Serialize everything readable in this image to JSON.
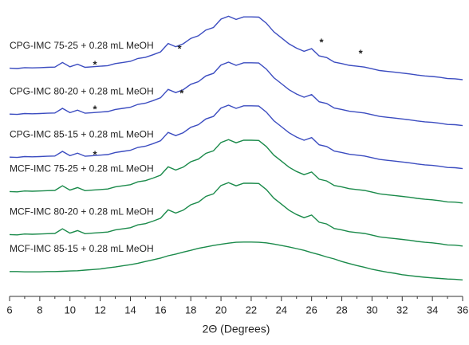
{
  "chart_data": {
    "type": "line",
    "x_label": "2Θ (Degrees)",
    "x": [
      6,
      6.5,
      7,
      7.5,
      8,
      8.5,
      9,
      9.5,
      10,
      10.5,
      11,
      11.5,
      12,
      12.5,
      13,
      13.5,
      14,
      14.5,
      15,
      15.5,
      16,
      16.5,
      17,
      17.5,
      18,
      18.5,
      19,
      19.5,
      20,
      20.5,
      21,
      21.5,
      22,
      22.5,
      23,
      23.5,
      24,
      24.5,
      25,
      25.5,
      26,
      26.5,
      27,
      27.5,
      28,
      28.5,
      29,
      29.5,
      30,
      30.5,
      31,
      31.5,
      32,
      32.5,
      33,
      33.5,
      34,
      34.5,
      35,
      35.5,
      36
    ],
    "xlim": [
      6,
      36
    ],
    "xticks": [
      6,
      8,
      10,
      12,
      14,
      16,
      18,
      20,
      22,
      24,
      26,
      28,
      30,
      32,
      34,
      36
    ],
    "ylim": [
      0,
      100
    ],
    "series": [
      {
        "name": "CPG-IMC 75-25 + 0.28 mL MeOH",
        "color": "#3b4cc0",
        "values": [
          79,
          78.9,
          79.2,
          79.1,
          79.2,
          79.3,
          79.4,
          81,
          79.5,
          80.4,
          79.3,
          79.5,
          79.7,
          79.9,
          80.6,
          81,
          81.4,
          82.4,
          82.8,
          83.7,
          84.7,
          87.6,
          86.5,
          87.5,
          89.4,
          90.3,
          92.3,
          93.2,
          96.1,
          97.1,
          96,
          96.9,
          96.9,
          96.8,
          94.7,
          91.7,
          89.6,
          87.5,
          86,
          84.9,
          85.8,
          83.3,
          82.7,
          81.1,
          80.6,
          80,
          79.7,
          79.4,
          78.8,
          78.2,
          77.9,
          77.6,
          77.3,
          77,
          76.6,
          76.3,
          76.1,
          75.8,
          75.4,
          75.3,
          75
        ]
      },
      {
        "name": "CPG-IMC 80-20 + 0.28 mL MeOH",
        "color": "#3b4cc0",
        "values": [
          63,
          62.9,
          63.2,
          63.1,
          63.2,
          63.3,
          63.4,
          65,
          63.5,
          64.4,
          63.3,
          63.5,
          63.7,
          63.9,
          64.6,
          65,
          65.4,
          66.4,
          66.8,
          67.7,
          68.7,
          71.6,
          70.5,
          71.5,
          73.4,
          74.3,
          76.3,
          77.2,
          80.1,
          81.1,
          80,
          80.9,
          80.9,
          80.8,
          78.7,
          75.7,
          73.6,
          71.5,
          70,
          68.9,
          69.8,
          67.3,
          66.7,
          65.1,
          64.6,
          64,
          63.7,
          63.4,
          62.8,
          62.2,
          61.9,
          61.6,
          61.3,
          61,
          60.6,
          60.3,
          60.1,
          59.8,
          59.4,
          59.3,
          59
        ]
      },
      {
        "name": "CPG-IMC 85-15 + 0.28 mL MeOH",
        "color": "#3b4cc0",
        "values": [
          48,
          47.9,
          48.2,
          48.1,
          48.2,
          48.3,
          48.4,
          50,
          48.5,
          49.4,
          48.3,
          48.5,
          48.7,
          48.9,
          49.6,
          50,
          50.4,
          51.4,
          51.8,
          52.7,
          53.7,
          56.6,
          55.5,
          56.5,
          58.4,
          59.3,
          61.3,
          62.2,
          65.1,
          66.1,
          65,
          65.9,
          65.9,
          65.8,
          63.7,
          60.7,
          58.6,
          56.5,
          55,
          53.9,
          54.8,
          52.3,
          51.7,
          50.1,
          49.6,
          49,
          48.7,
          48.4,
          47.8,
          47.2,
          46.9,
          46.6,
          46.3,
          46,
          45.6,
          45.3,
          45.1,
          44.8,
          44.4,
          44.3,
          44
        ]
      },
      {
        "name": "MCF-IMC 75-25 + 0.28 mL MeOH",
        "color": "#1a8a4a",
        "values": [
          36,
          35.9,
          36.2,
          36.1,
          36.2,
          36.3,
          36.4,
          38,
          36.5,
          37.4,
          36.3,
          36.5,
          36.7,
          36.9,
          37.6,
          38,
          38.4,
          39.4,
          39.8,
          40.7,
          41.7,
          44.6,
          43.5,
          44.5,
          46.4,
          47.3,
          49.3,
          50.2,
          53.1,
          54.1,
          53,
          53.9,
          53.9,
          53.8,
          51.7,
          48.7,
          46.6,
          44.5,
          43,
          41.9,
          42.8,
          40.3,
          39.7,
          38.1,
          37.6,
          37,
          36.7,
          36.4,
          35.8,
          35.2,
          34.9,
          34.6,
          34.3,
          34,
          33.6,
          33.3,
          33.1,
          32.8,
          32.4,
          32.3,
          32
        ]
      },
      {
        "name": "MCF-IMC 80-20 + 0.28 mL MeOH",
        "color": "#1a8a4a",
        "values": [
          21,
          20.9,
          21.2,
          21.1,
          21.2,
          21.3,
          21.4,
          23,
          21.5,
          22.4,
          21.3,
          21.5,
          21.7,
          21.9,
          22.6,
          23,
          23.4,
          24.4,
          24.8,
          25.7,
          26.7,
          29.6,
          28.5,
          29.5,
          31.4,
          32.3,
          34.3,
          35.2,
          38.1,
          39.1,
          38,
          38.9,
          38.9,
          38.8,
          36.7,
          33.7,
          31.6,
          29.5,
          28,
          26.9,
          27.8,
          25.3,
          24.7,
          23.1,
          22.6,
          22,
          21.7,
          21.4,
          20.8,
          20.2,
          19.9,
          19.6,
          19.3,
          19,
          18.6,
          18.3,
          18.1,
          17.8,
          17.4,
          17.3,
          17
        ]
      },
      {
        "name": "MCF-IMC 85-15 + 0.28 mL MeOH",
        "color": "#1a8a4a",
        "values": [
          8.1,
          8.1,
          8,
          8,
          8,
          8.1,
          8.1,
          8.2,
          8.3,
          8.4,
          8.6,
          8.8,
          9,
          9.4,
          9.7,
          10.1,
          10.5,
          11,
          11.6,
          12.2,
          12.8,
          13.6,
          14.2,
          14.9,
          15.5,
          16.2,
          16.7,
          17.2,
          17.6,
          18,
          18.3,
          18.4,
          18.4,
          18.3,
          18.1,
          17.7,
          17.2,
          16.7,
          16.1,
          15.5,
          14.7,
          14,
          13.2,
          12.5,
          11.6,
          10.9,
          10.2,
          9.6,
          8.9,
          8.4,
          7.9,
          7.5,
          7,
          6.7,
          6.4,
          6.1,
          5.9,
          5.7,
          5.5,
          5.4,
          5.2
        ]
      }
    ],
    "annotations": [
      {
        "text": "*",
        "x": 11.65,
        "y": 80
      },
      {
        "text": "*",
        "x": 17.25,
        "y": 85.6
      },
      {
        "text": "*",
        "x": 26.65,
        "y": 87.8
      },
      {
        "text": "*",
        "x": 29.25,
        "y": 83.9
      },
      {
        "text": "*",
        "x": 11.65,
        "y": 64.4
      },
      {
        "text": "*",
        "x": 17.4,
        "y": 70
      },
      {
        "text": "*",
        "x": 11.65,
        "y": 48.6
      }
    ]
  }
}
